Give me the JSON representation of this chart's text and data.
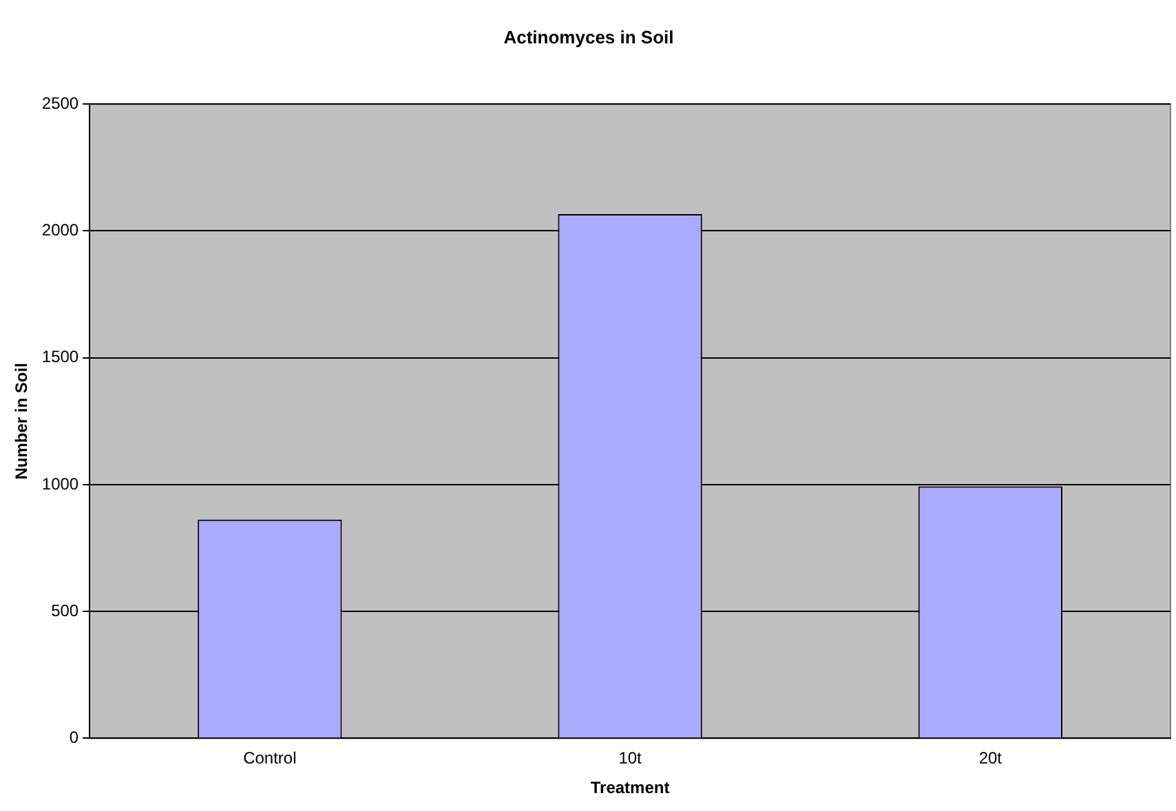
{
  "chart_data": {
    "type": "bar",
    "title": "Actinomyces in Soil",
    "xlabel": "Treatment",
    "ylabel": "Number in Soil",
    "categories": [
      "Control",
      "10t",
      "20t"
    ],
    "values": [
      862,
      2066,
      993
    ],
    "color": "#aaaaff",
    "ylim": [
      0,
      2500
    ],
    "yticks": [
      0,
      500,
      1000,
      1500,
      2000,
      2500
    ],
    "grid": "y",
    "legend": false
  }
}
